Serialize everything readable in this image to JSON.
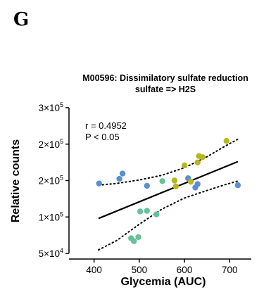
{
  "panel_label": "G",
  "chart_data": {
    "type": "scatter",
    "title_line1": "M00596: Dissimilatory sulfate reduction",
    "title_line2": "sulfate => H2S",
    "xlabel": "Glycemia (AUC)",
    "ylabel": "Relative counts",
    "xlim": [
      350,
      740
    ],
    "ylim": [
      50000,
      300000
    ],
    "x_ticks": [
      {
        "value": 400,
        "label": "400"
      },
      {
        "value": 500,
        "label": "500"
      },
      {
        "value": 600,
        "label": "600"
      },
      {
        "value": 700,
        "label": "700"
      }
    ],
    "y_ticks": [
      {
        "value": 50000,
        "mantissa": "5×10",
        "exp": "4"
      },
      {
        "value": 112500,
        "mantissa": "1×10",
        "exp": "5"
      },
      {
        "value": 175000,
        "mantissa": "2×10",
        "exp": "5"
      },
      {
        "value": 237500,
        "mantissa": "2×10",
        "exp": "5"
      },
      {
        "value": 300000,
        "mantissa": "3×10",
        "exp": "5"
      }
    ],
    "annotation": {
      "r": "r  = 0.4952",
      "p": "P < 0.05"
    },
    "regression": {
      "x": [
        410,
        718
      ],
      "y": [
        110000,
        207500
      ]
    },
    "ci_upper": {
      "x": [
        410,
        450,
        500,
        550,
        600,
        650,
        690,
        718
      ],
      "y": [
        167000,
        170000,
        176000,
        184000,
        197000,
        216000,
        234000,
        246000
      ]
    },
    "ci_lower": {
      "x": [
        410,
        450,
        500,
        550,
        600,
        650,
        690,
        718
      ],
      "y": [
        56000,
        72000,
        100000,
        126000,
        145000,
        158000,
        168000,
        174000
      ]
    },
    "series": [
      {
        "color": "#5b8fcf",
        "points": [
          [
            411,
            170000
          ],
          [
            456,
            178000
          ],
          [
            463,
            187000
          ],
          [
            517,
            166000
          ],
          [
            608,
            179000
          ],
          [
            624,
            163000
          ],
          [
            629,
            169000
          ],
          [
            718,
            167000
          ]
        ]
      },
      {
        "color": "#66c199",
        "points": [
          [
            482,
            76000
          ],
          [
            488,
            71000
          ],
          [
            498,
            78000
          ],
          [
            502,
            122000
          ],
          [
            517,
            123000
          ],
          [
            538,
            117000
          ],
          [
            551,
            174000
          ]
        ]
      },
      {
        "color": "#b5b820",
        "points": [
          [
            578,
            175000
          ],
          [
            581,
            165000
          ],
          [
            600,
            201000
          ],
          [
            614,
            173000
          ],
          [
            629,
            206000
          ],
          [
            632,
            217000
          ],
          [
            640,
            215000
          ],
          [
            693,
            243000
          ]
        ]
      }
    ]
  }
}
